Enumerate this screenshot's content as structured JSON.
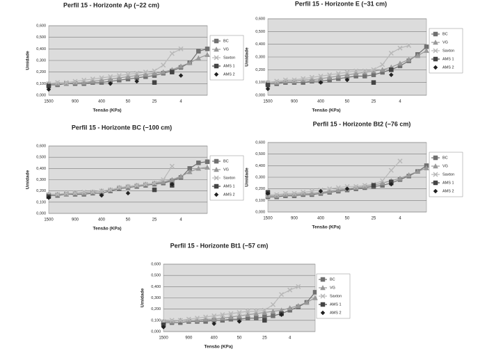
{
  "chart_data": [
    {
      "type": "line",
      "title": "Perfil 15 - Horizonte Ap (−22 cm)",
      "x_label": "Tensão (KPa)",
      "y_label": "Umidade",
      "categories": [
        "1500",
        null,
        null,
        "900",
        null,
        null,
        "400",
        null,
        null,
        "50",
        null,
        null,
        "25",
        null,
        null,
        "4",
        null,
        null,
        null
      ],
      "ylim": [
        0,
        0.6
      ],
      "yticks": [
        {
          "value": 0,
          "label": "0,000"
        },
        {
          "value": 0.1,
          "label": "0,100"
        },
        {
          "value": 0.2,
          "label": "0,200"
        },
        {
          "value": 0.3,
          "label": "0,300"
        },
        {
          "value": 0.4,
          "label": "0,400"
        },
        {
          "value": 0.5,
          "label": "0,500"
        },
        {
          "value": 0.6,
          "label": "0,600"
        }
      ],
      "grid": true,
      "series": [
        {
          "name": "BC",
          "color": "#707070",
          "marker": "square",
          "line": true,
          "values": [
            0.09,
            0.09,
            0.1,
            0.1,
            0.1,
            0.11,
            0.11,
            0.12,
            0.13,
            0.14,
            0.15,
            0.16,
            0.17,
            0.19,
            0.21,
            0.24,
            0.28,
            0.38,
            0.4
          ]
        },
        {
          "name": "VG",
          "color": "#999999",
          "marker": "triangle",
          "line": true,
          "values": [
            0.1,
            0.1,
            0.1,
            0.11,
            0.11,
            0.12,
            0.13,
            0.14,
            0.15,
            0.16,
            0.17,
            0.18,
            0.19,
            0.2,
            0.22,
            0.25,
            0.28,
            0.32,
            0.35
          ]
        },
        {
          "name": "Saxton",
          "color": "#b8b8b8",
          "marker": "x",
          "line": true,
          "values": [
            0.1,
            0.11,
            0.11,
            0.12,
            0.13,
            0.14,
            0.15,
            0.16,
            0.17,
            0.18,
            0.19,
            0.2,
            0.21,
            0.26,
            0.36,
            0.4,
            null,
            null,
            null
          ]
        },
        {
          "name": "AMS 1",
          "color": "#444444",
          "marker": "square",
          "line": false,
          "values": [
            0.08,
            null,
            null,
            null,
            null,
            null,
            null,
            null,
            null,
            null,
            null,
            null,
            0.11,
            null,
            0.2,
            null,
            null,
            null,
            null
          ]
        },
        {
          "name": "AMS 2",
          "color": "#222222",
          "marker": "diamond",
          "line": false,
          "values": [
            0.05,
            null,
            null,
            null,
            null,
            null,
            null,
            0.1,
            null,
            null,
            0.12,
            null,
            null,
            null,
            null,
            0.17,
            null,
            null,
            null
          ]
        }
      ]
    },
    {
      "type": "line",
      "title": "Perfil 15 - Horizonte E (−31 cm)",
      "x_label": "Tensão (KPa)",
      "y_label": "Umidade",
      "categories": [
        "1500",
        null,
        null,
        "900",
        null,
        null,
        "400",
        null,
        null,
        "50",
        null,
        null,
        "25",
        null,
        null,
        "4",
        null,
        null,
        null
      ],
      "ylim": [
        0,
        0.6
      ],
      "yticks": [
        {
          "value": 0,
          "label": "0,000"
        },
        {
          "value": 0.1,
          "label": "0,100"
        },
        {
          "value": 0.2,
          "label": "0,200"
        },
        {
          "value": 0.3,
          "label": "0,300"
        },
        {
          "value": 0.4,
          "label": "0,400"
        },
        {
          "value": 0.5,
          "label": "0,500"
        },
        {
          "value": 0.6,
          "label": "0,600"
        }
      ],
      "grid": true,
      "series": [
        {
          "name": "BC",
          "color": "#707070",
          "marker": "square",
          "line": true,
          "values": [
            0.09,
            0.09,
            0.1,
            0.1,
            0.1,
            0.11,
            0.11,
            0.12,
            0.13,
            0.14,
            0.15,
            0.15,
            0.16,
            0.18,
            0.2,
            0.23,
            0.27,
            0.32,
            0.38
          ]
        },
        {
          "name": "VG",
          "color": "#999999",
          "marker": "triangle",
          "line": true,
          "values": [
            0.1,
            0.1,
            0.11,
            0.11,
            0.12,
            0.12,
            0.13,
            0.14,
            0.15,
            0.16,
            0.17,
            0.18,
            0.19,
            0.2,
            0.22,
            0.25,
            0.28,
            0.31,
            0.35
          ]
        },
        {
          "name": "Saxton",
          "color": "#b8b8b8",
          "marker": "x",
          "line": true,
          "values": [
            0.1,
            0.11,
            0.12,
            0.12,
            0.13,
            0.14,
            0.15,
            0.16,
            0.17,
            0.18,
            0.19,
            0.19,
            0.2,
            0.24,
            0.33,
            0.37,
            0.39,
            null,
            null
          ]
        },
        {
          "name": "AMS 1",
          "color": "#444444",
          "marker": "square",
          "line": false,
          "values": [
            0.08,
            null,
            null,
            null,
            null,
            null,
            null,
            null,
            null,
            null,
            null,
            null,
            0.1,
            null,
            0.2,
            null,
            null,
            null,
            null
          ]
        },
        {
          "name": "AMS 2",
          "color": "#222222",
          "marker": "diamond",
          "line": false,
          "values": [
            0.05,
            null,
            null,
            null,
            null,
            null,
            0.1,
            null,
            null,
            0.12,
            null,
            null,
            null,
            null,
            0.16,
            null,
            null,
            null,
            null
          ]
        }
      ]
    },
    {
      "type": "line",
      "title": "Perfil 15 - Horizonte BC (−100 cm)",
      "x_label": "Tensão (KPa)",
      "y_label": "Umidade",
      "categories": [
        "1500",
        null,
        null,
        "900",
        null,
        null,
        "400",
        null,
        null,
        "50",
        null,
        null,
        "25",
        null,
        null,
        "4",
        null,
        null,
        null
      ],
      "ylim": [
        0,
        0.6
      ],
      "yticks": [
        {
          "value": 0,
          "label": "0,000"
        },
        {
          "value": 0.1,
          "label": "0,100"
        },
        {
          "value": 0.2,
          "label": "0,200"
        },
        {
          "value": 0.3,
          "label": "0,300"
        },
        {
          "value": 0.4,
          "label": "0,400"
        },
        {
          "value": 0.5,
          "label": "0,500"
        },
        {
          "value": 0.6,
          "label": "0,600"
        }
      ],
      "grid": true,
      "series": [
        {
          "name": "BC",
          "color": "#707070",
          "marker": "square",
          "line": true,
          "values": [
            0.16,
            0.16,
            0.17,
            0.17,
            0.17,
            0.18,
            0.18,
            0.2,
            0.22,
            0.23,
            0.24,
            0.25,
            0.26,
            0.27,
            0.29,
            0.32,
            0.4,
            0.45,
            0.46
          ]
        },
        {
          "name": "VG",
          "color": "#999999",
          "marker": "triangle",
          "line": true,
          "values": [
            0.17,
            0.17,
            0.17,
            0.18,
            0.18,
            0.19,
            0.2,
            0.21,
            0.23,
            0.24,
            0.25,
            0.26,
            0.27,
            0.28,
            0.3,
            0.33,
            0.37,
            0.4,
            0.41
          ]
        },
        {
          "name": "Saxton",
          "color": "#b8b8b8",
          "marker": "x",
          "line": true,
          "values": [
            0.17,
            0.17,
            0.18,
            0.18,
            0.19,
            0.19,
            0.2,
            0.21,
            0.23,
            0.24,
            0.25,
            0.26,
            0.27,
            0.3,
            0.42,
            null,
            null,
            null,
            null
          ]
        },
        {
          "name": "AMS 1",
          "color": "#444444",
          "marker": "square",
          "line": false,
          "values": [
            0.15,
            null,
            null,
            null,
            null,
            null,
            null,
            null,
            null,
            null,
            null,
            null,
            0.21,
            null,
            0.25,
            null,
            null,
            null,
            null
          ]
        },
        {
          "name": "AMS 2",
          "color": "#222222",
          "marker": "diamond",
          "line": false,
          "values": [
            0.14,
            null,
            null,
            null,
            null,
            null,
            0.16,
            null,
            null,
            0.18,
            null,
            null,
            null,
            null,
            0.26,
            null,
            null,
            null,
            null
          ]
        }
      ]
    },
    {
      "type": "line",
      "title": "Perfil 15 - Horizonte Bt2 (−76 cm)",
      "x_label": "Tensão (KPa)",
      "y_label": "Umidade",
      "categories": [
        "1500",
        null,
        null,
        "900",
        null,
        null,
        "400",
        null,
        null,
        "50",
        null,
        null,
        "25",
        null,
        null,
        "4",
        null,
        null,
        null
      ],
      "ylim": [
        0,
        0.6
      ],
      "yticks": [
        {
          "value": 0,
          "label": "0,000"
        },
        {
          "value": 0.1,
          "label": "0,100"
        },
        {
          "value": 0.2,
          "label": "0,200"
        },
        {
          "value": 0.3,
          "label": "0,300"
        },
        {
          "value": 0.4,
          "label": "0,400"
        },
        {
          "value": 0.5,
          "label": "0,500"
        },
        {
          "value": 0.6,
          "label": "0,600"
        }
      ],
      "grid": true,
      "series": [
        {
          "name": "BC",
          "color": "#707070",
          "marker": "square",
          "line": true,
          "values": [
            0.13,
            0.13,
            0.14,
            0.14,
            0.15,
            0.15,
            0.16,
            0.17,
            0.18,
            0.19,
            0.2,
            0.21,
            0.22,
            0.23,
            0.25,
            0.28,
            0.31,
            0.35,
            0.4
          ]
        },
        {
          "name": "VG",
          "color": "#999999",
          "marker": "triangle",
          "line": true,
          "values": [
            0.14,
            0.14,
            0.15,
            0.15,
            0.16,
            0.16,
            0.17,
            0.18,
            0.19,
            0.2,
            0.21,
            0.22,
            0.23,
            0.25,
            0.27,
            0.29,
            0.32,
            0.35,
            0.38
          ]
        },
        {
          "name": "Saxton",
          "color": "#b8b8b8",
          "marker": "x",
          "line": true,
          "values": [
            0.15,
            0.15,
            0.16,
            0.16,
            0.17,
            0.18,
            0.19,
            0.2,
            0.21,
            0.22,
            0.22,
            0.23,
            0.24,
            0.27,
            0.36,
            0.44,
            null,
            null,
            null
          ]
        },
        {
          "name": "AMS 1",
          "color": "#444444",
          "marker": "square",
          "line": false,
          "values": [
            0.17,
            null,
            null,
            null,
            null,
            null,
            null,
            null,
            null,
            null,
            null,
            null,
            0.23,
            null,
            0.26,
            null,
            null,
            null,
            null
          ]
        },
        {
          "name": "AMS 2",
          "color": "#222222",
          "marker": "diamond",
          "line": false,
          "values": [
            0.16,
            null,
            null,
            null,
            null,
            null,
            0.18,
            null,
            null,
            0.2,
            null,
            null,
            null,
            null,
            0.24,
            null,
            null,
            null,
            null
          ]
        }
      ]
    },
    {
      "type": "line",
      "title": "Perfil 15 - Horizonte Bt1 (−57 cm)",
      "x_label": "Tensão (KPa)",
      "y_label": "Umidade",
      "categories": [
        "1500",
        null,
        null,
        "900",
        null,
        null,
        "400",
        null,
        null,
        "50",
        null,
        null,
        "25",
        null,
        null,
        "4",
        null,
        null,
        null
      ],
      "ylim": [
        0,
        0.6
      ],
      "yticks": [
        {
          "value": 0,
          "label": "0,000"
        },
        {
          "value": 0.1,
          "label": "0,100"
        },
        {
          "value": 0.2,
          "label": "0,200"
        },
        {
          "value": 0.3,
          "label": "0,300"
        },
        {
          "value": 0.4,
          "label": "0,400"
        },
        {
          "value": 0.5,
          "label": "0,500"
        },
        {
          "value": 0.6,
          "label": "0,600"
        }
      ],
      "grid": true,
      "series": [
        {
          "name": "BC",
          "color": "#707070",
          "marker": "square",
          "line": true,
          "values": [
            0.08,
            0.08,
            0.08,
            0.09,
            0.09,
            0.09,
            0.1,
            0.1,
            0.11,
            0.11,
            0.12,
            0.12,
            0.13,
            0.14,
            0.16,
            0.19,
            0.22,
            0.26,
            0.35
          ]
        },
        {
          "name": "VG",
          "color": "#999999",
          "marker": "triangle",
          "line": true,
          "values": [
            0.09,
            0.09,
            0.1,
            0.1,
            0.1,
            0.11,
            0.11,
            0.12,
            0.13,
            0.14,
            0.15,
            0.16,
            0.17,
            0.18,
            0.19,
            0.21,
            0.23,
            0.26,
            0.3
          ]
        },
        {
          "name": "Saxton",
          "color": "#b8b8b8",
          "marker": "x",
          "line": true,
          "values": [
            0.09,
            0.1,
            0.1,
            0.11,
            0.12,
            0.13,
            0.14,
            0.15,
            0.16,
            0.17,
            0.18,
            0.18,
            0.19,
            0.24,
            0.33,
            0.37,
            0.4,
            null,
            null
          ]
        },
        {
          "name": "AMS 1",
          "color": "#444444",
          "marker": "square",
          "line": false,
          "values": [
            0.06,
            null,
            null,
            null,
            null,
            null,
            null,
            null,
            null,
            null,
            null,
            null,
            0.1,
            null,
            0.16,
            null,
            null,
            null,
            null
          ]
        },
        {
          "name": "AMS 2",
          "color": "#222222",
          "marker": "diamond",
          "line": false,
          "values": [
            0.04,
            null,
            null,
            null,
            null,
            null,
            0.07,
            null,
            null,
            0.09,
            null,
            null,
            null,
            null,
            0.15,
            null,
            null,
            null,
            null
          ]
        }
      ]
    }
  ]
}
